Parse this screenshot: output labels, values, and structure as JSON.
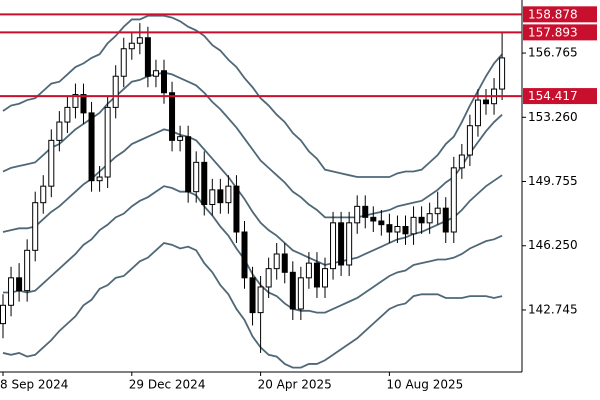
{
  "chart_data": {
    "type": "candlestick",
    "categories": [
      "8 Sep 2024",
      null,
      null,
      null,
      null,
      null,
      null,
      null,
      null,
      null,
      null,
      null,
      null,
      null,
      null,
      null,
      "29 Dec 2024",
      null,
      null,
      null,
      null,
      null,
      null,
      null,
      null,
      null,
      null,
      null,
      null,
      null,
      null,
      null,
      "20 Apr 2025",
      null,
      null,
      null,
      null,
      null,
      null,
      null,
      null,
      null,
      null,
      null,
      null,
      null,
      null,
      null,
      "10 Aug 2025",
      null,
      null,
      null,
      null,
      null,
      null,
      null,
      null,
      null,
      null,
      null,
      null,
      null,
      null
    ],
    "open": [
      142.0,
      143.0,
      144.5,
      143.8,
      146.0,
      148.6,
      149.5,
      152.0,
      153.0,
      153.8,
      154.5,
      153.5,
      149.8,
      150.0,
      153.8,
      155.5,
      157.0,
      157.3,
      157.6,
      155.5,
      155.8,
      154.6,
      152.0,
      152.2,
      149.2,
      150.8,
      148.5,
      149.3,
      148.6,
      149.5,
      147.0,
      144.5,
      142.6,
      144.0,
      145.0,
      145.8,
      144.8,
      142.8,
      144.5,
      145.3,
      144.0,
      145.0,
      147.5,
      145.2,
      147.5,
      148.4,
      147.8,
      147.6,
      147.4,
      147.0,
      147.3,
      146.9,
      147.8,
      147.5,
      148.0,
      148.3,
      147.0,
      150.5,
      151.2,
      152.8,
      154.2,
      154.0,
      154.8
    ],
    "high": [
      143.6,
      145.1,
      145.3,
      146.6,
      149.2,
      150.1,
      152.6,
      153.6,
      154.4,
      155.1,
      155.1,
      154.1,
      150.6,
      154.4,
      156.1,
      157.6,
      157.9,
      158.4,
      158.2,
      156.4,
      156.4,
      155.2,
      152.8,
      152.8,
      151.4,
      151.4,
      149.9,
      149.9,
      150.1,
      150.1,
      147.6,
      145.1,
      144.6,
      145.6,
      146.4,
      146.4,
      145.4,
      145.1,
      145.9,
      145.9,
      145.6,
      148.1,
      148.1,
      148.1,
      149.0,
      149.0,
      148.4,
      148.2,
      148.0,
      147.9,
      147.9,
      148.4,
      148.4,
      148.6,
      149.2,
      148.9,
      151.1,
      151.8,
      153.4,
      154.8,
      154.8,
      155.4,
      157.9
    ],
    "low": [
      141.2,
      142.4,
      143.2,
      143.2,
      145.4,
      148.0,
      148.9,
      151.4,
      152.4,
      153.2,
      152.9,
      149.2,
      149.2,
      149.4,
      153.2,
      154.9,
      156.4,
      156.7,
      154.9,
      154.9,
      154.0,
      151.4,
      151.4,
      148.6,
      148.6,
      147.9,
      147.9,
      148.0,
      148.0,
      146.4,
      143.9,
      141.9,
      140.4,
      143.4,
      144.4,
      144.2,
      142.2,
      142.2,
      143.9,
      143.4,
      143.4,
      144.4,
      144.6,
      144.6,
      146.9,
      147.2,
      147.0,
      146.8,
      146.4,
      146.4,
      146.3,
      146.3,
      146.9,
      146.9,
      147.4,
      146.4,
      146.4,
      149.9,
      150.6,
      152.2,
      153.4,
      153.4,
      154.2
    ],
    "close": [
      143.0,
      144.5,
      143.8,
      146.0,
      148.6,
      149.5,
      152.0,
      153.0,
      153.8,
      154.5,
      153.5,
      149.8,
      150.0,
      153.8,
      155.5,
      157.0,
      157.3,
      157.6,
      155.5,
      155.8,
      154.6,
      152.0,
      152.2,
      149.2,
      150.8,
      148.5,
      149.3,
      148.6,
      149.5,
      147.0,
      144.5,
      142.6,
      144.0,
      145.0,
      145.8,
      144.8,
      142.8,
      144.5,
      145.3,
      144.0,
      145.0,
      147.5,
      145.2,
      147.5,
      148.4,
      147.8,
      147.6,
      147.4,
      147.0,
      147.3,
      146.9,
      147.8,
      147.5,
      148.0,
      148.3,
      147.0,
      150.5,
      151.2,
      152.8,
      154.2,
      154.0,
      154.8,
      156.5
    ],
    "up_color": "#ffffff",
    "down_color": "#000000",
    "edge_color": "#000000",
    "bands": [
      {
        "color": "#4f6878",
        "values": [
          153.6,
          153.9,
          154.0,
          154.2,
          154.3,
          154.7,
          155.1,
          155.2,
          155.6,
          156.0,
          156.2,
          156.5,
          156.7,
          157.3,
          157.7,
          158.2,
          158.6,
          158.6,
          158.8,
          158.8,
          158.8,
          158.7,
          158.5,
          158.2,
          158.0,
          157.7,
          157.2,
          156.9,
          156.4,
          156.0,
          155.4,
          154.9,
          154.3,
          153.9,
          153.4,
          153.0,
          152.4,
          152.0,
          151.4,
          151.0,
          150.4,
          150.3,
          150.2,
          150.1,
          150.0,
          150.0,
          150.0,
          150.0,
          150.0,
          150.2,
          150.3,
          150.3,
          150.4,
          150.8,
          151.2,
          151.8,
          152.2,
          153.0,
          153.9,
          154.7,
          155.5,
          156.2,
          156.7
        ]
      },
      {
        "color": "#4f6878",
        "values": [
          150.3,
          150.5,
          150.6,
          150.7,
          150.8,
          151.2,
          151.6,
          151.8,
          152.2,
          152.6,
          152.9,
          153.2,
          153.5,
          154.0,
          154.4,
          154.8,
          155.2,
          155.3,
          155.5,
          155.6,
          155.7,
          155.6,
          155.4,
          155.2,
          155.0,
          154.6,
          154.1,
          153.7,
          153.2,
          152.7,
          152.1,
          151.5,
          150.9,
          150.5,
          150.1,
          149.7,
          149.2,
          148.9,
          148.5,
          148.2,
          147.8,
          147.8,
          147.8,
          147.8,
          147.8,
          147.9,
          148.0,
          148.1,
          148.2,
          148.4,
          148.5,
          148.6,
          148.7,
          149.0,
          149.3,
          149.7,
          150.0,
          150.6,
          151.3,
          151.9,
          152.5,
          153.0,
          153.4
        ]
      },
      {
        "color": "#4f6878",
        "values": [
          147.0,
          147.1,
          147.2,
          147.2,
          147.3,
          147.7,
          148.1,
          148.4,
          148.8,
          149.2,
          149.6,
          149.9,
          150.3,
          150.7,
          151.1,
          151.4,
          151.8,
          152.0,
          152.2,
          152.4,
          152.6,
          152.5,
          152.3,
          152.2,
          152.0,
          151.5,
          151.0,
          150.5,
          150.0,
          149.4,
          148.8,
          148.1,
          147.5,
          147.1,
          146.8,
          146.4,
          146.0,
          145.8,
          145.6,
          145.4,
          145.2,
          145.3,
          145.4,
          145.5,
          145.6,
          145.8,
          146.0,
          146.2,
          146.4,
          146.6,
          146.7,
          146.9,
          147.0,
          147.2,
          147.4,
          147.6,
          147.8,
          148.2,
          148.7,
          149.1,
          149.5,
          149.8,
          150.1
        ]
      },
      {
        "color": "#4f6878",
        "values": [
          143.7,
          143.7,
          143.8,
          143.7,
          143.8,
          144.2,
          144.6,
          145.0,
          145.4,
          145.8,
          146.3,
          146.6,
          147.1,
          147.4,
          147.8,
          148.0,
          148.4,
          148.7,
          148.9,
          149.2,
          149.5,
          149.4,
          149.2,
          149.2,
          149.0,
          148.4,
          147.9,
          147.3,
          146.8,
          146.1,
          145.5,
          144.7,
          144.1,
          143.7,
          143.5,
          143.1,
          142.8,
          142.7,
          142.7,
          142.6,
          142.6,
          142.8,
          143.0,
          143.2,
          143.4,
          143.7,
          144.0,
          144.3,
          144.6,
          144.8,
          144.9,
          145.2,
          145.3,
          145.4,
          145.5,
          145.5,
          145.6,
          145.8,
          146.1,
          146.3,
          146.5,
          146.6,
          146.8
        ]
      },
      {
        "color": "#4f6878",
        "values": [
          140.4,
          140.3,
          140.4,
          140.2,
          140.3,
          140.7,
          141.1,
          141.6,
          142.0,
          142.4,
          143.0,
          143.3,
          143.9,
          144.1,
          144.5,
          144.6,
          145.0,
          145.4,
          145.6,
          146.0,
          146.4,
          146.3,
          146.1,
          146.2,
          146.0,
          145.3,
          144.8,
          144.1,
          143.6,
          142.8,
          142.2,
          141.3,
          140.7,
          140.3,
          140.2,
          139.8,
          139.6,
          139.6,
          139.8,
          139.8,
          140.0,
          140.3,
          140.6,
          140.9,
          141.2,
          141.6,
          142.0,
          142.4,
          142.8,
          143.0,
          143.1,
          143.5,
          143.6,
          143.6,
          143.6,
          143.4,
          143.4,
          143.4,
          143.5,
          143.5,
          143.5,
          143.4,
          143.5
        ]
      }
    ],
    "hlines": [
      {
        "value": 158.878,
        "color": "#c8102e"
      },
      {
        "value": 157.893,
        "color": "#c8102e"
      },
      {
        "value": 154.417,
        "color": "#c8102e"
      }
    ],
    "ylim": [
      139.36,
      159.66
    ],
    "yticks": [
      142.745,
      {
        "value": 146.25,
        "label": "146.250"
      },
      149.755,
      {
        "value": 153.26,
        "label": "153.260"
      },
      156.765
    ]
  }
}
